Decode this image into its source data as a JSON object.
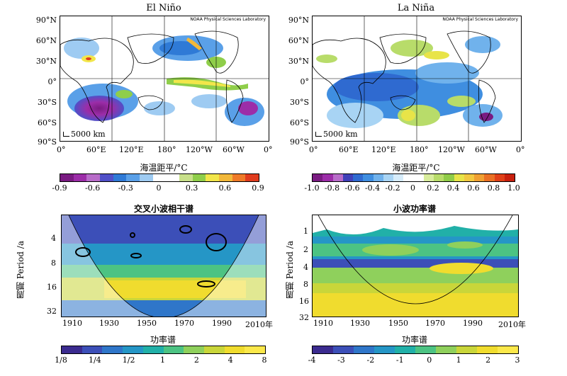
{
  "top_left": {
    "title": "El Niño",
    "watermark": "NOAA Physical Sciences Laboratory",
    "scale": "5000 km",
    "lat_labels": [
      "90°N",
      "60°N",
      "30°N",
      "0°",
      "30°S",
      "60°S",
      "90°S"
    ],
    "lon_labels": [
      "0°",
      "60°E",
      "120°E",
      "180°",
      "120°W",
      "60°W",
      "0°"
    ],
    "colorbar_title": "海温距平/°C",
    "colorbar_ticks": [
      "-0.9",
      "-0.6",
      "-0.3",
      "0",
      "0.3",
      "0.6",
      "0.9"
    ],
    "colorbar_colors": [
      "#7a1b82",
      "#9c2da8",
      "#b86cc9",
      "#5050c8",
      "#2f7ad6",
      "#5aa0e8",
      "#9ecbf2",
      "#ffffff",
      "#ffffff",
      "#c8e08a",
      "#8fce4a",
      "#f2e64a",
      "#f2b83a",
      "#ef7a28",
      "#e03c1e"
    ]
  },
  "top_right": {
    "title": "La Niña",
    "watermark": "NOAA Physical Sciences Laboratory",
    "scale": "5000 km",
    "lat_labels": [
      "90°N",
      "60°N",
      "30°N",
      "0°",
      "30°S",
      "60°S",
      "90°S"
    ],
    "lon_labels": [
      "0°",
      "60°E",
      "120°E",
      "180°",
      "120°W",
      "60°W",
      "0°"
    ],
    "colorbar_title": "海温距平/°C",
    "colorbar_ticks": [
      "-1.0",
      "-0.8",
      "-0.6",
      "-0.4",
      "-0.2",
      "0",
      "0.2",
      "0.4",
      "0.6",
      "0.8",
      "1.0"
    ],
    "colorbar_colors": [
      "#7a1b82",
      "#9c2da8",
      "#b86cc9",
      "#4040b8",
      "#2f6ad0",
      "#3f8ee0",
      "#70b2ec",
      "#a8d4f4",
      "#d6ecfa",
      "#ffffff",
      "#ffffff",
      "#d8ec9c",
      "#b8dc6a",
      "#90cc48",
      "#e8e448",
      "#f2c840",
      "#f0a032",
      "#ea7024",
      "#e04018",
      "#c8200e"
    ]
  },
  "bottom_left": {
    "title": "交叉小波相干谱",
    "ylabel": "周期 Period /a",
    "y_ticks": [
      "4",
      "8",
      "16",
      "32"
    ],
    "x_ticks": [
      "1910",
      "1930",
      "1950",
      "1970",
      "1990",
      "2010年"
    ],
    "colorbar_title": "功率谱",
    "colorbar_ticks": [
      "1/8",
      "1/4",
      "1/2",
      "1",
      "2",
      "4",
      "8"
    ],
    "colorbar_colors": [
      "#3b2b8f",
      "#3c4fb8",
      "#2f76c9",
      "#2596c6",
      "#21b0a8",
      "#4cc383",
      "#8fd05c",
      "#c9d63a",
      "#f0dc2e",
      "#fbe84a"
    ]
  },
  "bottom_right": {
    "title": "小波功率谱",
    "ylabel": "周期 Period /a",
    "y_ticks": [
      "1",
      "2",
      "4",
      "8",
      "16",
      "32"
    ],
    "x_ticks": [
      "1910",
      "1930",
      "1950",
      "1970",
      "1990",
      "2010年"
    ],
    "colorbar_title": "功率谱",
    "colorbar_ticks": [
      "-4",
      "-3",
      "-2",
      "-1",
      "0",
      "1",
      "2",
      "3"
    ],
    "colorbar_colors": [
      "#3b2b8f",
      "#3c4fb8",
      "#2f76c9",
      "#2596c6",
      "#21b0a8",
      "#4cc383",
      "#8fd05c",
      "#c9d63a",
      "#f0dc2e",
      "#fbe84a"
    ]
  }
}
